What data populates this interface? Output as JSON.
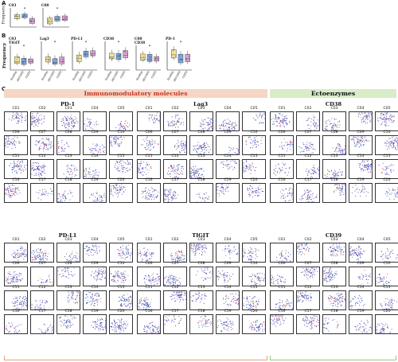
{
  "panel_a": {
    "letter": "A",
    "ylabel": "Frequency",
    "plots": [
      {
        "title": "C03",
        "sig": "*"
      },
      {
        "title": "C08",
        "sig": "*"
      }
    ]
  },
  "panel_b": {
    "letter": "B",
    "ylabel": "Frequency",
    "plots": [
      {
        "title": "C03",
        "subtitle": "TIGIT",
        "sig": "*",
        "groups": [
          "Healthy",
          "AECOPD",
          "COPD"
        ]
      },
      {
        "title": "Lag3",
        "subtitle": "",
        "sig": "*",
        "groups": [
          "Healthy",
          "AECOPD",
          "COPD"
        ]
      },
      {
        "title": "PD-L1",
        "subtitle": "",
        "sig": "*",
        "groups": [
          "Healthy",
          "AECOPD",
          "COPD"
        ]
      },
      {
        "title": "CD38",
        "subtitle": "",
        "sig": "*",
        "groups": [
          "Healthy",
          "AECOPD",
          "COPD"
        ]
      },
      {
        "title": "C08",
        "subtitle": "CD38",
        "sig": "*",
        "groups": [
          "Healthy",
          "AECOPD",
          "COPD"
        ]
      },
      {
        "title": "PD-1",
        "subtitle": "",
        "sig": "*",
        "groups": [
          "Healthy",
          "AECOPD",
          "COPD"
        ]
      }
    ]
  },
  "panel_c": {
    "letter": "C",
    "headers": {
      "immuno": "Immunomodulatory molecules",
      "ecto": "Ectoenzymes"
    },
    "groups": [
      {
        "title": "PD-1"
      },
      {
        "title": "Lag3"
      },
      {
        "title": "CD38"
      },
      {
        "title": "PD-L1"
      },
      {
        "title": "TIGIT"
      },
      {
        "title": "CD39"
      }
    ],
    "clusters": [
      "C01",
      "C02",
      "C03",
      "C04",
      "C05",
      "C06",
      "C07",
      "C08",
      "C09",
      "C10",
      "C11",
      "C12",
      "C13",
      "C14",
      "C15",
      "C16",
      "C17",
      "C18",
      "C19",
      "C20"
    ]
  },
  "colors": {
    "boxes": [
      "#f1e39a",
      "#7ea6dc",
      "#d9a3d6"
    ],
    "immuno_header_bg": "#f6d6c4",
    "immuno_header_text": "#c0392b",
    "ecto_header_bg": "#d8ecc8",
    "immuno_bracket": "#e8a27d",
    "ecto_bracket": "#8ccf78",
    "dots": [
      "#3c4fb4",
      "#6a52b8",
      "#d12c5f",
      "#e08b36",
      "#38a0b0",
      "#8a8a8a"
    ]
  }
}
